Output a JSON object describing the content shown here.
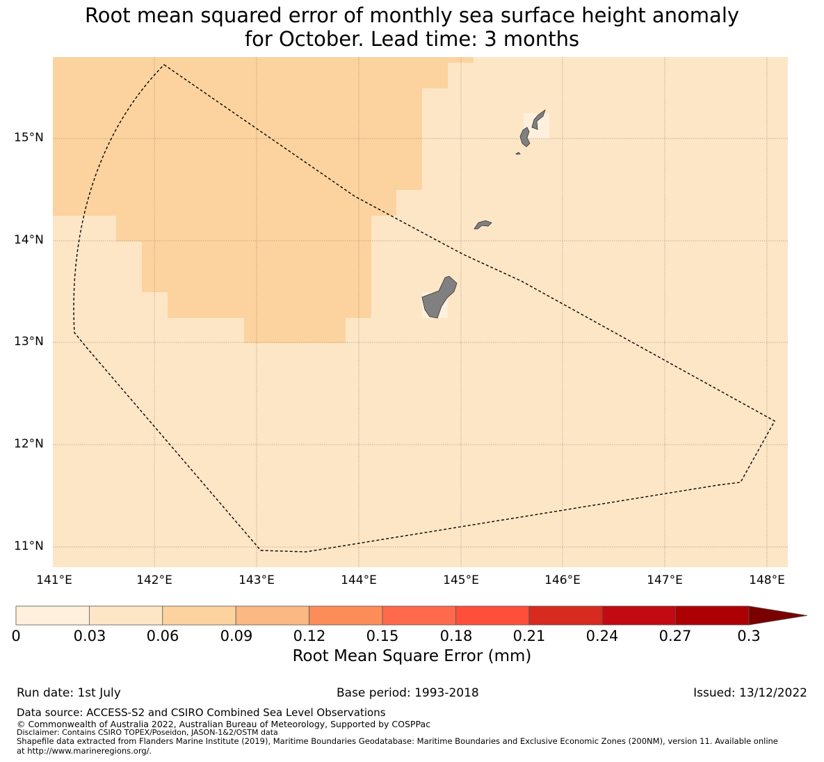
{
  "title": {
    "line1": "Root mean squared error of monthly sea surface height anomaly",
    "line2": "for October. Lead time: 3 months"
  },
  "map": {
    "lat_labels": [
      "15°N",
      "14°N",
      "13°N",
      "12°N",
      "11°N"
    ],
    "lon_labels": [
      "141°E",
      "142°E",
      "143°E",
      "144°E",
      "145°E",
      "146°E",
      "147°E",
      "148°E"
    ],
    "fill_colors": {
      "lightest": "#fef0dc",
      "light": "#fde6c6",
      "medium": "#fcd39f",
      "land": "#808080"
    },
    "boundary_style": "dashed black EEZ outline"
  },
  "colorbar": {
    "ticks": [
      "0",
      "0.03",
      "0.06",
      "0.09",
      "0.12",
      "0.15",
      "0.18",
      "0.21",
      "0.24",
      "0.27",
      "0.3"
    ],
    "colors": [
      "#fef0dc",
      "#fde6c6",
      "#fcd39f",
      "#fcb882",
      "#fc8d59",
      "#fd6a4c",
      "#fe4f3a",
      "#d72b1f",
      "#c30a12",
      "#ac0005",
      "#7a0000"
    ],
    "label": "Root Mean Square Error (mm)"
  },
  "footer": {
    "run_date": "Run date: 1st July",
    "base_period": "Base period: 1993-2018",
    "issued": "Issued: 13/12/2022",
    "data_source": "Data source: ACCESS-S2 and CSIRO Combined Sea Level Observations",
    "copyright": "© Commonwealth of Australia 2022, Australian Bureau of Meteorology, Supported by COSPPac",
    "disclaimer": "Disclaimer: Contains CSIRO TOPEX/Poseidon, JASON-1&2/OSTM data",
    "shapefile_line1": "Shapefile data extracted from Flanders Marine Institute (2019), Maritime Boundaries Geodatabase: Maritime Boundaries and Exclusive Economic Zones (200NM), version 11. Available online",
    "shapefile_line2": "at http://www.marineregions.org/."
  }
}
